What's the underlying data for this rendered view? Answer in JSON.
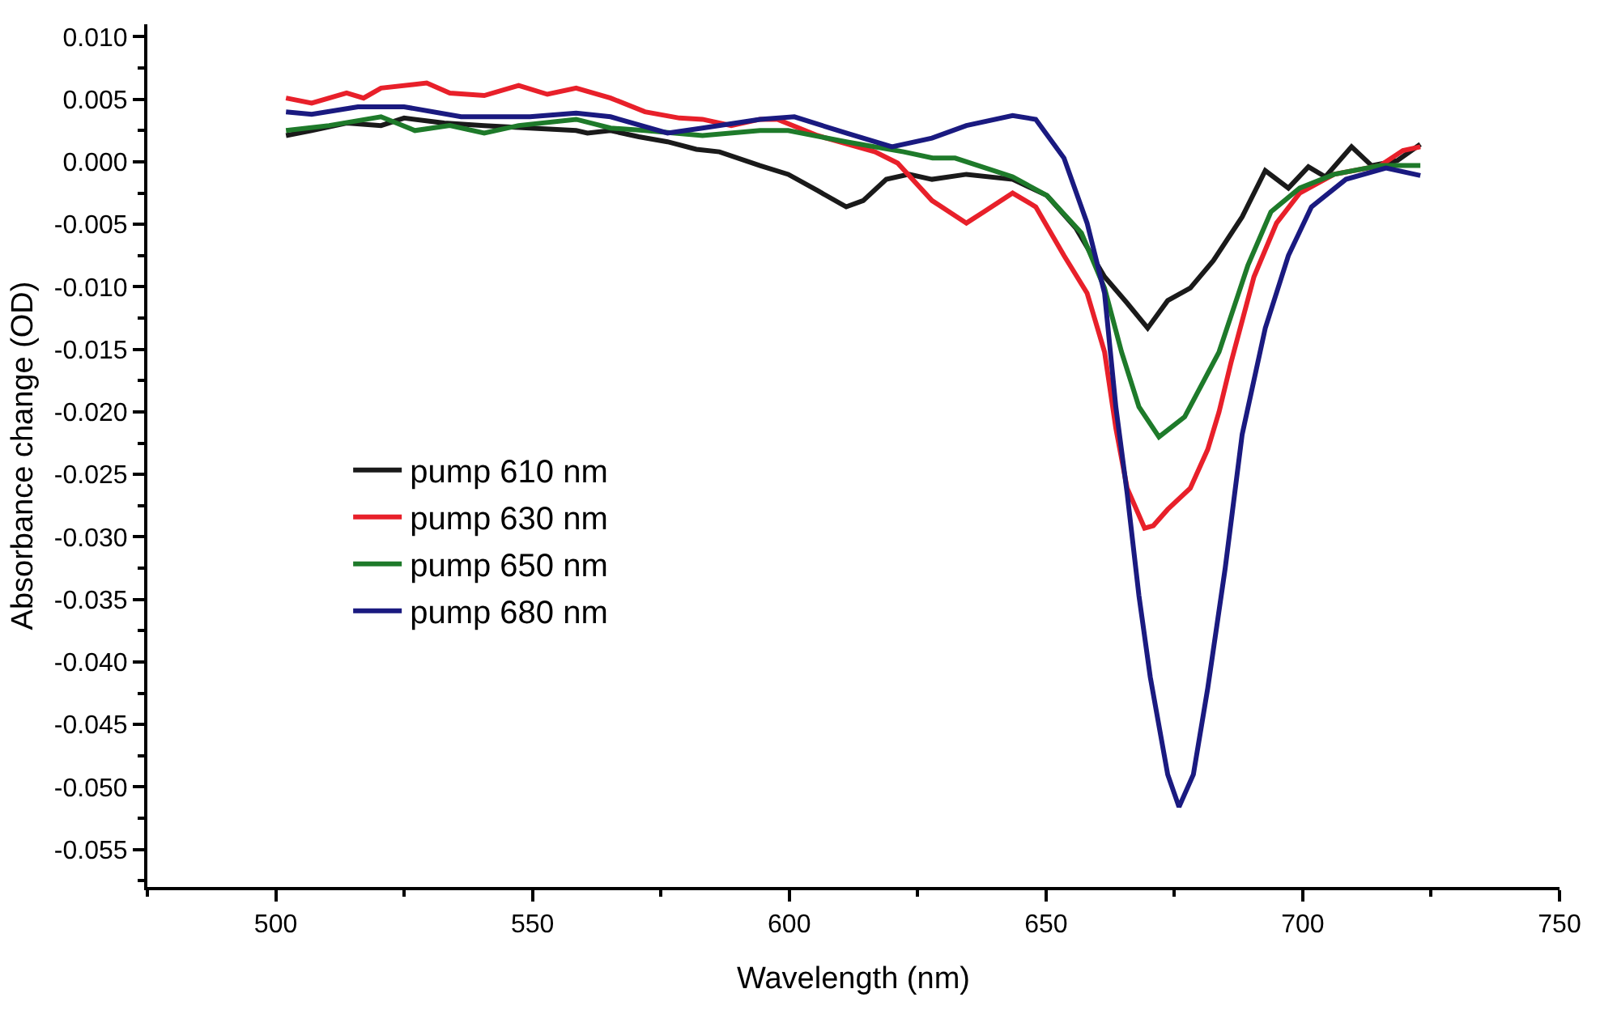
{
  "chart_data": {
    "type": "line",
    "xlabel": "Wavelength (nm)",
    "ylabel": "Absorbance change (OD)",
    "xlim": [
      475,
      750
    ],
    "ylim": [
      -0.058,
      0.011
    ],
    "xticks": [
      {
        "value": 475,
        "label": null
      },
      500,
      {
        "value": 525,
        "label": null
      },
      550,
      {
        "value": 575,
        "label": null
      },
      600,
      {
        "value": 625,
        "label": null
      },
      650,
      {
        "value": 675,
        "label": null
      },
      700,
      {
        "value": 725,
        "label": null
      },
      750
    ],
    "yticks": [
      {
        "value": 0.01,
        "label": "0.010"
      },
      {
        "value": 0.0075,
        "label": null
      },
      0.005,
      {
        "value": 0.0025,
        "label": null
      },
      {
        "value": 0,
        "label": "0.000"
      },
      {
        "value": -0.0025,
        "label": null
      },
      -0.005,
      {
        "value": -0.0075,
        "label": null
      },
      {
        "value": -0.01,
        "label": "-0.010"
      },
      {
        "value": -0.0125,
        "label": null
      },
      -0.015,
      {
        "value": -0.0175,
        "label": null
      },
      {
        "value": -0.02,
        "label": "-0.020"
      },
      {
        "value": -0.0225,
        "label": null
      },
      -0.025,
      {
        "value": -0.0275,
        "label": null
      },
      {
        "value": -0.03,
        "label": "-0.030"
      },
      {
        "value": -0.0325,
        "label": null
      },
      -0.035,
      {
        "value": -0.0375,
        "label": null
      },
      {
        "value": -0.04,
        "label": "-0.040"
      },
      {
        "value": -0.0425,
        "label": null
      },
      -0.045,
      {
        "value": -0.0475,
        "label": null
      },
      {
        "value": -0.05,
        "label": "-0.050"
      },
      {
        "value": -0.0525,
        "label": null
      },
      -0.055,
      {
        "value": -0.0575,
        "label": null
      }
    ],
    "legend": "left",
    "line_style": "solid",
    "series": [
      {
        "name": "pump 610 nm",
        "color": "#1a1a1a",
        "x": [
          502,
          507,
          513.8,
          520.5,
          525,
          532.8,
          540.6,
          549.5,
          558.5,
          560.7,
          565.2,
          570.7,
          576.3,
          581.9,
          586.4,
          594.3,
          599.8,
          605.5,
          611.1,
          614.4,
          618.9,
          623.3,
          627.8,
          634.5,
          643.5,
          650.2,
          655.8,
          661.4,
          665.8,
          669.8,
          673.7,
          678.1,
          682.6,
          688.2,
          692.7,
          697.2,
          701.1,
          704.4,
          709.5,
          713.4,
          718.4,
          722.9
        ],
        "values": [
          0.0021,
          0.0025,
          0.0031,
          0.0029,
          0.0035,
          0.0031,
          0.0029,
          0.0027,
          0.0025,
          0.0023,
          0.0025,
          0.002,
          0.0016,
          0.001,
          0.0008,
          -0.0003,
          -0.001,
          -0.0023,
          -0.0036,
          -0.0031,
          -0.0014,
          -0.001,
          -0.0014,
          -0.001,
          -0.0014,
          -0.0027,
          -0.0053,
          -0.0092,
          -0.0113,
          -0.0133,
          -0.0111,
          -0.0101,
          -0.0079,
          -0.0044,
          -0.0007,
          -0.0021,
          -0.0004,
          -0.0012,
          0.0012,
          -0.0003,
          0.0001,
          0.0014
        ]
      },
      {
        "name": "pump 630 nm",
        "color": "#e8202a",
        "x": [
          502,
          507,
          513.8,
          517.1,
          520.5,
          529.4,
          533.9,
          540.6,
          547.3,
          552.9,
          558.5,
          565.2,
          571.9,
          578.6,
          583.1,
          588.7,
          594.3,
          597.7,
          605.5,
          616.7,
          621.1,
          627.8,
          634.5,
          637.9,
          643.5,
          648,
          653.5,
          658,
          661.4,
          663.6,
          665.8,
          669.2,
          670.9,
          673.7,
          678.1,
          681.5,
          683.7,
          686,
          690.5,
          694.9,
          699.4,
          706.1,
          715.1,
          719.5,
          722.9
        ],
        "values": [
          0.0051,
          0.0047,
          0.0055,
          0.0051,
          0.0059,
          0.0063,
          0.0055,
          0.0053,
          0.0061,
          0.0054,
          0.0059,
          0.0051,
          0.004,
          0.0035,
          0.0034,
          0.0029,
          0.0034,
          0.0034,
          0.0021,
          0.0008,
          -0.0001,
          -0.0031,
          -0.0049,
          -0.004,
          -0.0025,
          -0.0036,
          -0.0075,
          -0.0105,
          -0.0152,
          -0.0213,
          -0.0261,
          -0.0293,
          -0.0291,
          -0.0278,
          -0.0261,
          -0.023,
          -0.02,
          -0.0161,
          -0.0092,
          -0.0049,
          -0.0025,
          -0.001,
          -0.0003,
          0.0009,
          0.0012
        ]
      },
      {
        "name": "pump 650 nm",
        "color": "#1e7a2a",
        "x": [
          502,
          510.4,
          520.5,
          527.1,
          533.9,
          540.6,
          547.3,
          558.5,
          565.2,
          571.9,
          583.1,
          594.3,
          599.8,
          611.1,
          622.3,
          627.9,
          632.3,
          643.5,
          650.2,
          656.9,
          661.4,
          664.7,
          668.1,
          672,
          677,
          683.7,
          689.3,
          693.8,
          699.4,
          706.1,
          715.1,
          722.9
        ],
        "values": [
          0.0025,
          0.0029,
          0.0036,
          0.0025,
          0.0029,
          0.0023,
          0.0029,
          0.0034,
          0.0027,
          0.0025,
          0.0021,
          0.0025,
          0.0025,
          0.0016,
          0.0008,
          0.0003,
          0.0003,
          -0.0012,
          -0.0027,
          -0.0057,
          -0.0101,
          -0.0152,
          -0.0196,
          -0.022,
          -0.0204,
          -0.0152,
          -0.0083,
          -0.004,
          -0.0021,
          -0.001,
          -0.0003,
          -0.0003
        ]
      },
      {
        "name": "pump 680 nm",
        "color": "#1a1a80",
        "x": [
          502,
          507,
          516,
          525,
          536.1,
          549.5,
          558.5,
          565.2,
          576.3,
          583.1,
          594.3,
          601,
          611.1,
          620,
          627.8,
          634.5,
          643.5,
          648,
          653.5,
          658,
          661.4,
          663.6,
          665.8,
          668.1,
          670.3,
          673.7,
          675.9,
          678.7,
          681.5,
          684.9,
          688.2,
          692.7,
          697.2,
          701.7,
          708.4,
          716.2,
          722.9
        ],
        "values": [
          0.004,
          0.0038,
          0.0044,
          0.0044,
          0.0036,
          0.0036,
          0.0039,
          0.0036,
          0.0023,
          0.0027,
          0.0034,
          0.0036,
          0.0023,
          0.0012,
          0.0019,
          0.0029,
          0.0037,
          0.0034,
          0.0003,
          -0.0049,
          -0.0105,
          -0.0196,
          -0.0265,
          -0.0347,
          -0.0412,
          -0.049,
          -0.0516,
          -0.049,
          -0.0421,
          -0.0325,
          -0.0218,
          -0.0133,
          -0.0075,
          -0.0036,
          -0.0014,
          -0.0005,
          -0.0011
        ]
      }
    ]
  }
}
